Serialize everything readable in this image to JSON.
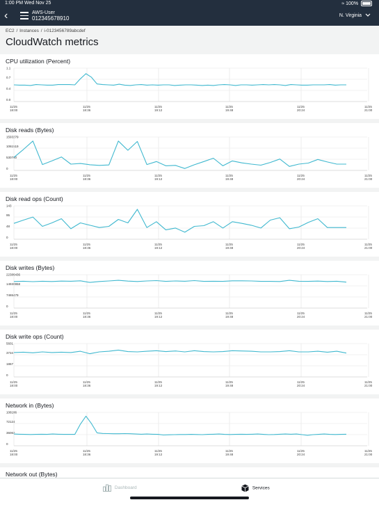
{
  "status_bar": {
    "time_date": "1:00 PM  Wed Nov 25",
    "battery": "100%"
  },
  "nav": {
    "back_icon": "chevron-left-icon",
    "account_name": "AWS-User",
    "account_id": "012345678910",
    "region": "N. Virginia"
  },
  "breadcrumb": [
    "EC2",
    "/",
    "Instances",
    "/",
    "i-0123456789abcdef"
  ],
  "page_title": "CloudWatch metrics",
  "colors": {
    "header": "#232f3e",
    "line": "#3fb8cf",
    "grid": "#e3e3e3"
  },
  "chart_data": [
    {
      "type": "line",
      "title": "CPU utilization (Percent)",
      "y_ticks": [
        "1.1",
        "0.7",
        "0.4",
        "0.0"
      ],
      "ylim": [
        0,
        1.1
      ],
      "x_ticks": [
        "11/25 18:00",
        "11/25 18:36",
        "11/25 19:12",
        "11/25 19:48",
        "11/25 20:24",
        "11/25 21:00"
      ],
      "x_time": {
        "start": "18:00",
        "interval_min": 3,
        "n": 61
      },
      "series": [
        {
          "values": [
            0.55,
            0.54,
            0.54,
            0.53,
            0.56,
            0.55,
            0.54,
            0.54,
            0.56,
            0.56,
            0.56,
            0.55,
            0.75,
            0.92,
            0.8,
            0.58,
            0.56,
            0.55,
            0.54,
            0.57,
            0.54,
            0.53,
            0.55,
            0.56,
            0.54,
            0.55,
            0.54,
            0.55,
            0.55,
            0.53,
            0.54,
            0.55,
            0.55,
            0.54,
            0.53,
            0.54,
            0.53,
            0.55,
            0.56,
            0.55,
            0.53,
            0.55,
            0.55,
            0.54,
            0.55,
            0.56,
            0.55,
            0.56,
            0.55,
            0.53,
            0.56,
            0.55,
            0.54,
            0.54,
            0.55,
            0.55,
            0.55,
            0.56,
            0.54,
            0.55,
            0.55
          ]
        }
      ]
    },
    {
      "type": "line",
      "title": "Disk reads (Bytes)",
      "y_ticks": [
        "1593279",
        "1061519",
        "530760",
        "0"
      ],
      "ylim": [
        0,
        1593279
      ],
      "x_ticks": [
        "11/25 18:00",
        "11/25 18:36",
        "11/25 19:12",
        "11/25 19:48",
        "11/25 20:24",
        "11/25 21:00"
      ],
      "x_time": {
        "start": "18:00",
        "interval_min": 6,
        "n": 36
      },
      "series": [
        {
          "values": [
            620000,
            1000000,
            1400000,
            280000,
            450000,
            640000,
            300000,
            330000,
            270000,
            240000,
            260000,
            1400000,
            960000,
            1380000,
            280000,
            420000,
            220000,
            240000,
            90000,
            270000,
            420000,
            580000,
            220000,
            450000,
            360000,
            300000,
            250000,
            380000,
            540000,
            190000,
            300000,
            350000,
            520000,
            400000,
            300000,
            300000
          ]
        }
      ]
    },
    {
      "type": "line",
      "title": "Disk read ops (Count)",
      "y_ticks": [
        "143",
        "95",
        "48",
        "0"
      ],
      "ylim": [
        0,
        143
      ],
      "x_ticks": [
        "11/25 18:00",
        "11/25 18:36",
        "11/25 19:12",
        "11/25 19:48",
        "11/25 20:24",
        "11/25 21:00"
      ],
      "x_time": {
        "start": "18:00",
        "interval_min": 6,
        "n": 36
      },
      "series": [
        {
          "values": [
            68,
            82,
            95,
            55,
            70,
            88,
            45,
            70,
            60,
            50,
            55,
            85,
            70,
            128,
            50,
            75,
            40,
            48,
            30,
            55,
            58,
            75,
            48,
            75,
            68,
            60,
            48,
            82,
            92,
            45,
            52,
            72,
            88,
            50,
            50,
            50
          ]
        }
      ]
    },
    {
      "type": "line",
      "title": "Disk writes (Bytes)",
      "y_ticks": [
        "22386436",
        "14930958",
        "7465479",
        "0"
      ],
      "ylim": [
        0,
        22386436
      ],
      "x_ticks": [
        "11/25 18:00",
        "11/25 18:36",
        "11/25 19:12",
        "11/25 19:48",
        "11/25 20:24",
        "11/25 21:00"
      ],
      "x_time": {
        "start": "18:00",
        "interval_min": 6,
        "n": 36
      },
      "series": [
        {
          "values": [
            17800000,
            18000000,
            17700000,
            18000000,
            17800000,
            18100000,
            18000000,
            18300000,
            17200000,
            17800000,
            18200000,
            18600000,
            18100000,
            17800000,
            18200000,
            18400000,
            17900000,
            18200000,
            18000000,
            18400000,
            17900000,
            18000000,
            17900000,
            18300000,
            18300000,
            18200000,
            17900000,
            17900000,
            17800000,
            18600000,
            18000000,
            17900000,
            18100000,
            17800000,
            18000000,
            17400000
          ]
        }
      ]
    },
    {
      "type": "line",
      "title": "Disk write ops (Count)",
      "y_ticks": [
        "5601",
        "3734",
        "1867",
        "0"
      ],
      "ylim": [
        0,
        5601
      ],
      "x_ticks": [
        "11/25 18:00",
        "11/25 18:36",
        "11/25 19:12",
        "11/25 19:48",
        "11/25 20:24",
        "11/25 21:00"
      ],
      "x_time": {
        "start": "18:00",
        "interval_min": 6,
        "n": 36
      },
      "series": [
        {
          "values": [
            4100,
            4150,
            4050,
            4200,
            4100,
            4150,
            4100,
            4300,
            3900,
            4200,
            4300,
            4500,
            4250,
            4200,
            4300,
            4400,
            4250,
            4350,
            4200,
            4400,
            4250,
            4200,
            4250,
            4400,
            4350,
            4300,
            4200,
            4200,
            4250,
            4400,
            4200,
            4200,
            4300,
            4150,
            4300,
            4000
          ]
        }
      ]
    },
    {
      "type": "line",
      "title": "Network in (Bytes)",
      "y_ticks": [
        "108186",
        "72124",
        "36062",
        "0"
      ],
      "ylim": [
        0,
        108186
      ],
      "x_ticks": [
        "11/25 18:00",
        "11/25 18:36",
        "11/25 19:12",
        "11/25 19:48",
        "11/25 20:24",
        "11/25 21:00"
      ],
      "x_time": {
        "start": "18:00",
        "interval_min": 3,
        "n": 61
      },
      "series": [
        {
          "values": [
            38000,
            37500,
            37000,
            36500,
            37000,
            37500,
            37000,
            38000,
            37500,
            37000,
            37000,
            37000,
            70000,
            96000,
            72000,
            42000,
            40000,
            39500,
            39000,
            39000,
            39500,
            39000,
            38000,
            37500,
            38000,
            37500,
            37000,
            35000,
            35500,
            36000,
            36500,
            36500,
            37000,
            36500,
            36000,
            37000,
            37500,
            38000,
            37000,
            36500,
            37000,
            37500,
            37000,
            37500,
            38000,
            37000,
            36000,
            36500,
            37500,
            38000,
            37500,
            38000,
            36000,
            34000,
            36000,
            37000,
            38000,
            37000,
            36500,
            37000,
            37500
          ]
        }
      ]
    },
    {
      "type": "line",
      "title": "Network out (Bytes)",
      "y_ticks": [],
      "ylim": [
        0,
        1
      ],
      "x_ticks": [],
      "x_time": {
        "start": "18:00",
        "interval_min": 3,
        "n": 0
      },
      "series": [
        {
          "values": []
        }
      ]
    }
  ],
  "tab_bar": {
    "tabs": [
      {
        "label": "Dashboard",
        "icon": "dashboard-icon",
        "active": false
      },
      {
        "label": "Services",
        "icon": "services-cube-icon",
        "active": true
      }
    ]
  }
}
